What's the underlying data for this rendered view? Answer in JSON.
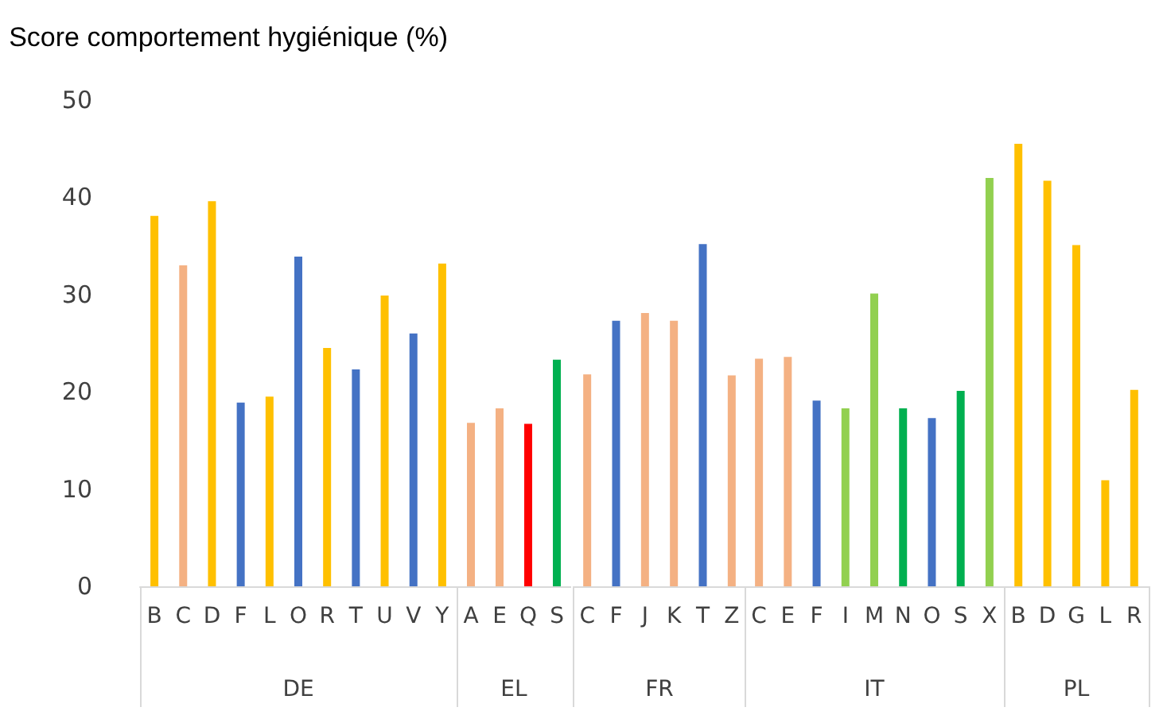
{
  "chart_data": [
    {
      "type": "bar",
      "title": "Score comportement hygiénique (%)",
      "xlabel": "DE",
      "categories": [
        "B",
        "C",
        "D",
        "F",
        "L",
        "O",
        "R",
        "T",
        "U",
        "V",
        "Y"
      ],
      "values": [
        38.1,
        33,
        39.6,
        18.9,
        19.5,
        33.9,
        24.5,
        22.3,
        29.9,
        26,
        33.2
      ],
      "colors": [
        "#ffc000",
        "#f4b183",
        "#ffc000",
        "#4472c4",
        "#ffc000",
        "#4472c4",
        "#ffc000",
        "#4472c4",
        "#ffc000",
        "#4472c4",
        "#ffc000"
      ],
      "ylim": [
        0,
        50
      ],
      "yticks": [
        0,
        10,
        20,
        30,
        40,
        50
      ]
    },
    {
      "type": "bar",
      "xlabel": "EL",
      "categories": [
        "A",
        "E",
        "Q",
        "S"
      ],
      "values": [
        16.8,
        18.3,
        16.7,
        23.3
      ],
      "colors": [
        "#f4b183",
        "#f4b183",
        "#ff0000",
        "#00b050"
      ],
      "ylim": [
        0,
        50
      ],
      "yticks": [
        0,
        10,
        20,
        30,
        40,
        50
      ],
      "tick_labels": "x"
    },
    {
      "type": "bar",
      "xlabel": "FR",
      "categories": [
        "C",
        "F",
        "J",
        "K",
        "T",
        "Z"
      ],
      "values": [
        21.8,
        27.3,
        28.1,
        27.3,
        35.2,
        21.7
      ],
      "colors": [
        "#f4b183",
        "#4472c4",
        "#f4b183",
        "#f4b183",
        "#4472c4",
        "#f4b183"
      ],
      "ylim": [
        0,
        50
      ],
      "yticks": [
        0,
        10,
        20,
        30,
        40,
        50
      ],
      "tick_labels": "x"
    },
    {
      "type": "bar",
      "xlabel": "IT",
      "categories": [
        "C",
        "E",
        "F",
        "I",
        "M",
        "N",
        "O",
        "S",
        "X"
      ],
      "values": [
        23.4,
        23.6,
        19.1,
        18.3,
        30.1,
        18.3,
        17.3,
        20.1,
        42
      ],
      "colors": [
        "#f4b183",
        "#f4b183",
        "#4472c4",
        "#92d050",
        "#92d050",
        "#00b050",
        "#4472c4",
        "#00b050",
        "#92d050"
      ],
      "ylim": [
        0,
        50
      ],
      "yticks": [
        0,
        10,
        20,
        30,
        40,
        50
      ],
      "tick_labels": "x"
    },
    {
      "type": "bar",
      "xlabel": "PL",
      "categories": [
        "B",
        "D",
        "G",
        "L",
        "R"
      ],
      "values": [
        45.5,
        41.7,
        35.1,
        10.9,
        20.2
      ],
      "colors": [
        "#ffc000",
        "#ffc000",
        "#ffc000",
        "#ffc000",
        "#ffc000"
      ],
      "ylim": [
        0,
        50
      ],
      "yticks": [
        0,
        10,
        20,
        30,
        40,
        50
      ],
      "tick_labels": "x"
    }
  ]
}
